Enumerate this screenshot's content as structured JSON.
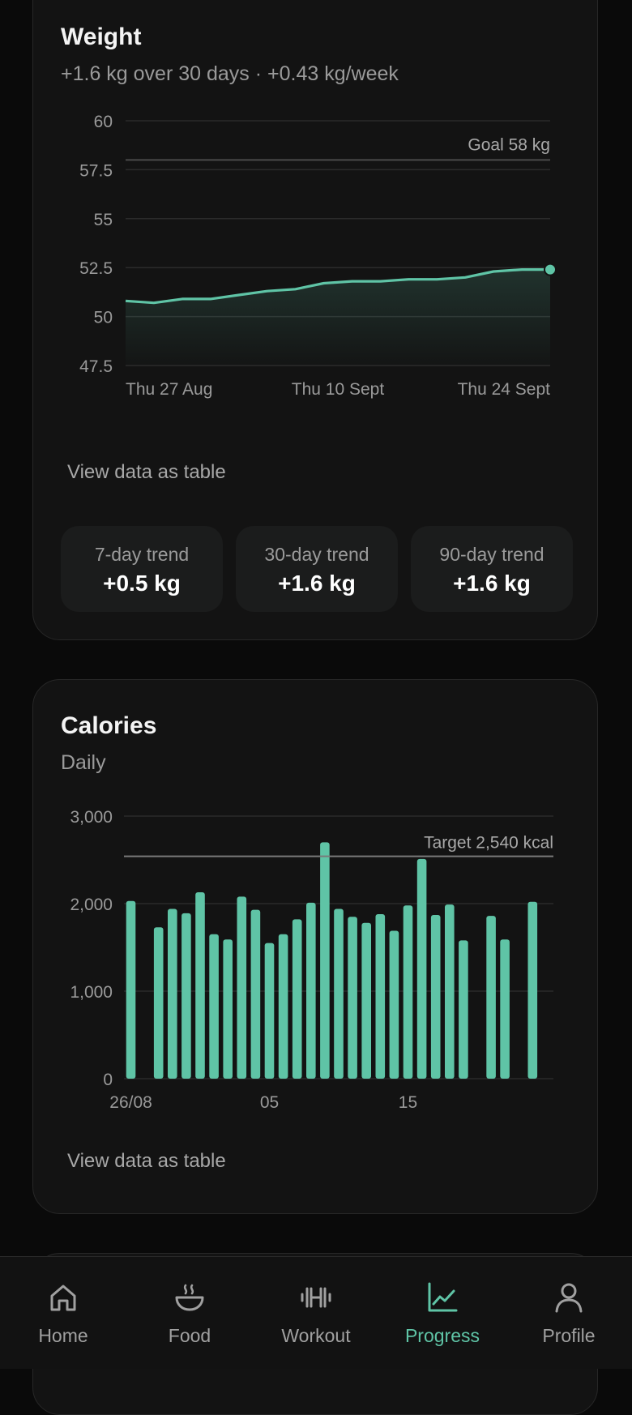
{
  "weight": {
    "title": "Weight",
    "subtitle": "+1.6 kg over 30 days · +0.43 kg/week",
    "view_table": "View data as table",
    "goal_label": "Goal 58 kg",
    "trends": [
      {
        "label": "7-day trend",
        "value": "+0.5 kg"
      },
      {
        "label": "30-day trend",
        "value": "+1.6 kg"
      },
      {
        "label": "90-day trend",
        "value": "+1.6 kg"
      }
    ]
  },
  "calories": {
    "title": "Calories",
    "subtitle": "Daily",
    "view_table": "View data as table",
    "target_label": "Target 2,540 kcal"
  },
  "tabs": [
    {
      "label": "Home",
      "icon": "home-icon"
    },
    {
      "label": "Food",
      "icon": "bowl-icon"
    },
    {
      "label": "Workout",
      "icon": "dumbbell-icon"
    },
    {
      "label": "Progress",
      "icon": "chart-icon",
      "active": true
    },
    {
      "label": "Profile",
      "icon": "person-icon"
    }
  ],
  "colors": {
    "accent": "#5fc4a6",
    "background": "#0a0a0a",
    "card": "#131313"
  },
  "chart_data": [
    {
      "type": "line",
      "y_ticks": [
        "60",
        "57.5",
        "55",
        "52.5",
        "50",
        "47.5"
      ],
      "ylim": [
        47.5,
        60
      ],
      "x_tick_labels": [
        "Thu 27 Aug",
        "Thu 10 Sept",
        "Thu 24 Sept"
      ],
      "x": [
        "2020-08-27",
        "2020-08-29",
        "2020-08-31",
        "2020-09-02",
        "2020-09-04",
        "2020-09-06",
        "2020-09-08",
        "2020-09-10",
        "2020-09-12",
        "2020-09-14",
        "2020-09-16",
        "2020-09-18",
        "2020-09-20",
        "2020-09-22",
        "2020-09-24",
        "2020-09-26"
      ],
      "values": [
        50.8,
        50.7,
        50.9,
        50.9,
        51.1,
        51.3,
        51.4,
        51.7,
        51.8,
        51.8,
        51.9,
        51.9,
        52.0,
        52.3,
        52.4,
        52.4
      ],
      "goal": 58
    },
    {
      "type": "bar",
      "y_ticks": [
        "3,000",
        "2,000",
        "1,000",
        "0"
      ],
      "ylim": [
        0,
        3000
      ],
      "x_tick_labels": [
        "26/08",
        "05",
        "15"
      ],
      "categories": [
        "26/08",
        "27/08",
        "28/08",
        "29/08",
        "30/08",
        "31/08",
        "01/09",
        "02/09",
        "03/09",
        "04/09",
        "05/09",
        "06/09",
        "07/09",
        "08/09",
        "09/09",
        "10/09",
        "11/09",
        "12/09",
        "13/09",
        "14/09",
        "15/09",
        "16/09",
        "17/09",
        "18/09",
        "19/09",
        "20/09",
        "21/09",
        "22/09",
        "23/09",
        "24/09",
        "25/09"
      ],
      "values": [
        2030,
        null,
        1730,
        1940,
        1890,
        2130,
        1650,
        1590,
        2080,
        1930,
        1550,
        1650,
        1820,
        2010,
        2700,
        1940,
        1850,
        1780,
        1880,
        1690,
        1980,
        2510,
        1870,
        1990,
        1580,
        null,
        1860,
        1590,
        null,
        2020,
        null
      ],
      "target": 2540
    }
  ]
}
